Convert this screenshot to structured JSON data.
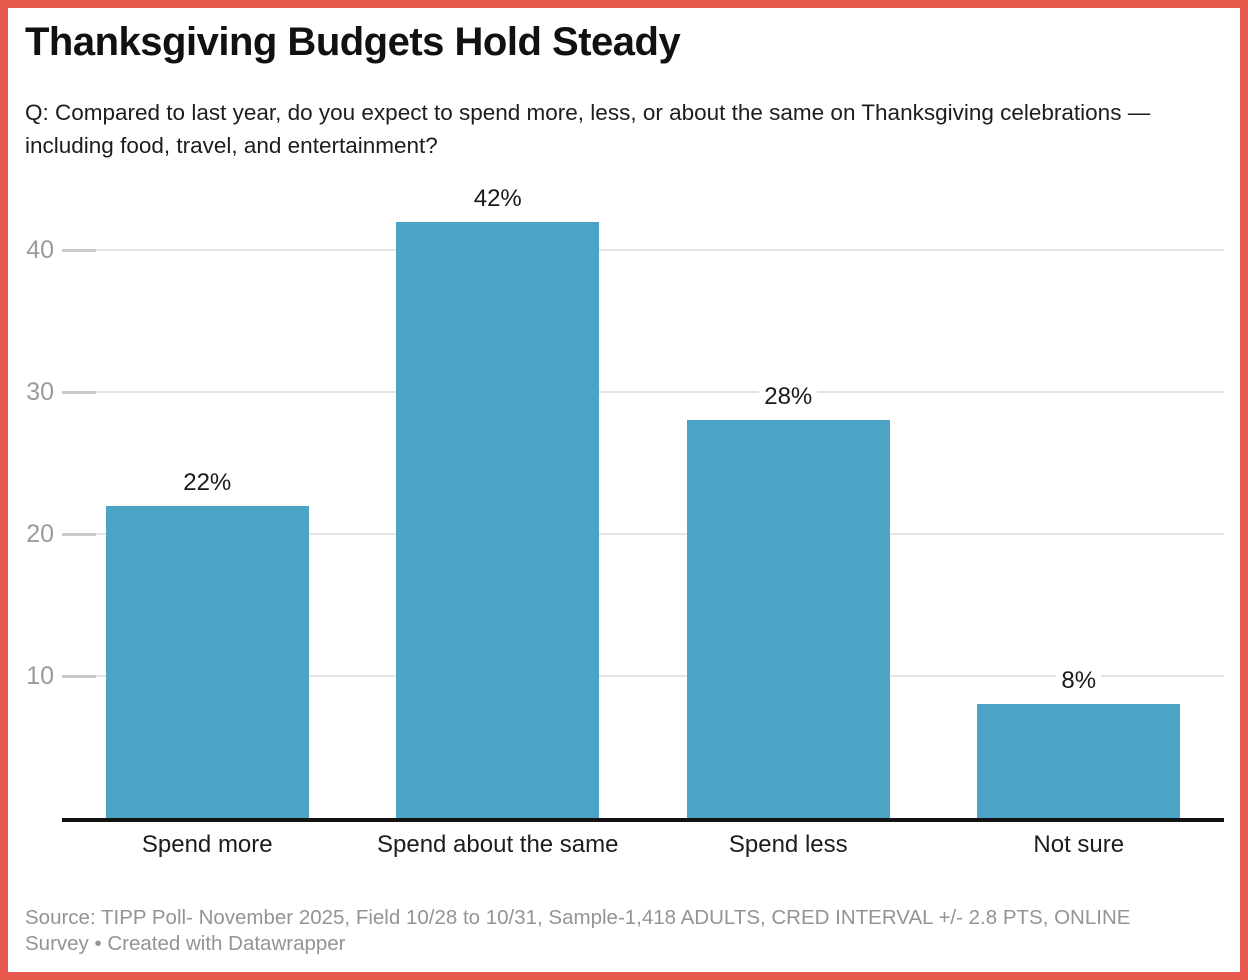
{
  "frame": {
    "border_color": "#e7594c"
  },
  "chart_data": {
    "type": "bar",
    "title": "Thanksgiving Budgets Hold Steady",
    "subtitle": "Q: Compared to last year, do you expect to spend more, less, or about the same on Thanksgiving celebrations — including food, travel, and entertainment?",
    "categories": [
      "Spend more",
      "Spend about the same",
      "Spend less",
      "Not sure"
    ],
    "values": [
      22,
      42,
      28,
      8
    ],
    "bar_labels": [
      "22%",
      "42%",
      "28%",
      "8%"
    ],
    "xlabel": "",
    "ylabel": "",
    "yticks": [
      10,
      20,
      30,
      40
    ],
    "ylim": [
      0,
      45
    ],
    "grid": true,
    "legend": "none",
    "bar_color": "#4ba4c6",
    "gridline_color": "#e4e4e4",
    "tick_label_color": "#9b9b9b"
  },
  "footer": {
    "source_line1": "Source: TIPP Poll- November 2025, Field 10/28 to 10/31, Sample-1,418 ADULTS, CRED INTERVAL +/- 2.8 PTS, ONLINE",
    "source_line2": "Survey • Created with Datawrapper"
  }
}
